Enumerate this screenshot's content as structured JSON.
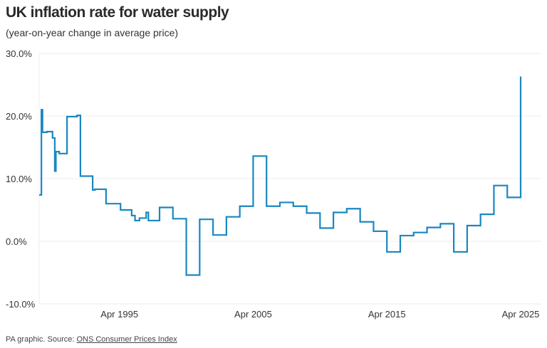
{
  "header": {
    "title": "UK inflation rate for water supply",
    "subtitle": "(year-on-year change in average price)"
  },
  "footer": {
    "prefix": "PA graphic. Source: ",
    "source_link": "ONS Consumer Prices Index"
  },
  "chart_data": {
    "type": "line",
    "step": true,
    "title": "UK inflation rate for water supply",
    "subtitle": "(year-on-year change in average price)",
    "xlabel": "",
    "ylabel": "",
    "color": "#1a87c0",
    "grid": true,
    "ylim": [
      -10,
      30
    ],
    "yticks": [
      30,
      20,
      10,
      0,
      -10
    ],
    "ytick_labels": [
      "30.0%",
      "20.0%",
      "10.0%",
      "0.0%",
      "-10.0%"
    ],
    "xlim": [
      "1989-04",
      "2025-04"
    ],
    "xticks": [
      "1995-04",
      "2005-04",
      "2015-04",
      "2025-04"
    ],
    "xtick_labels": [
      "Apr 1995",
      "Apr 2005",
      "Apr 2015",
      "Apr 2025"
    ],
    "points": [
      [
        "1989-04",
        7.4
      ],
      [
        "1989-06",
        21.0
      ],
      [
        "1989-07",
        17.4
      ],
      [
        "1989-11",
        17.5
      ],
      [
        "1990-04",
        16.5
      ],
      [
        "1990-06",
        11.2
      ],
      [
        "1990-07",
        14.3
      ],
      [
        "1990-10",
        14.0
      ],
      [
        "1991-05",
        19.9
      ],
      [
        "1992-02",
        20.1
      ],
      [
        "1992-05",
        10.4
      ],
      [
        "1993-04",
        8.2
      ],
      [
        "1993-06",
        8.3
      ],
      [
        "1994-04",
        6.0
      ],
      [
        "1995-05",
        5.0
      ],
      [
        "1996-03",
        4.1
      ],
      [
        "1996-06",
        3.3
      ],
      [
        "1996-10",
        3.7
      ],
      [
        "1997-04",
        4.6
      ],
      [
        "1997-06",
        3.3
      ],
      [
        "1998-04",
        5.4
      ],
      [
        "1999-04",
        3.6
      ],
      [
        "2000-04",
        -5.4
      ],
      [
        "2001-04",
        3.5
      ],
      [
        "2002-04",
        1.0
      ],
      [
        "2003-04",
        3.9
      ],
      [
        "2004-04",
        5.6
      ],
      [
        "2005-04",
        13.6
      ],
      [
        "2006-04",
        5.6
      ],
      [
        "2007-04",
        6.2
      ],
      [
        "2008-04",
        5.6
      ],
      [
        "2009-04",
        4.5
      ],
      [
        "2010-04",
        2.1
      ],
      [
        "2011-04",
        4.6
      ],
      [
        "2012-04",
        5.2
      ],
      [
        "2013-04",
        3.1
      ],
      [
        "2014-04",
        1.6
      ],
      [
        "2015-04",
        -1.7
      ],
      [
        "2016-04",
        0.9
      ],
      [
        "2017-04",
        1.4
      ],
      [
        "2018-04",
        2.2
      ],
      [
        "2019-04",
        2.8
      ],
      [
        "2020-04",
        -1.7
      ],
      [
        "2021-04",
        2.5
      ],
      [
        "2022-04",
        4.3
      ],
      [
        "2023-04",
        8.9
      ],
      [
        "2024-04",
        7.0
      ],
      [
        "2025-04",
        26.3
      ]
    ]
  }
}
